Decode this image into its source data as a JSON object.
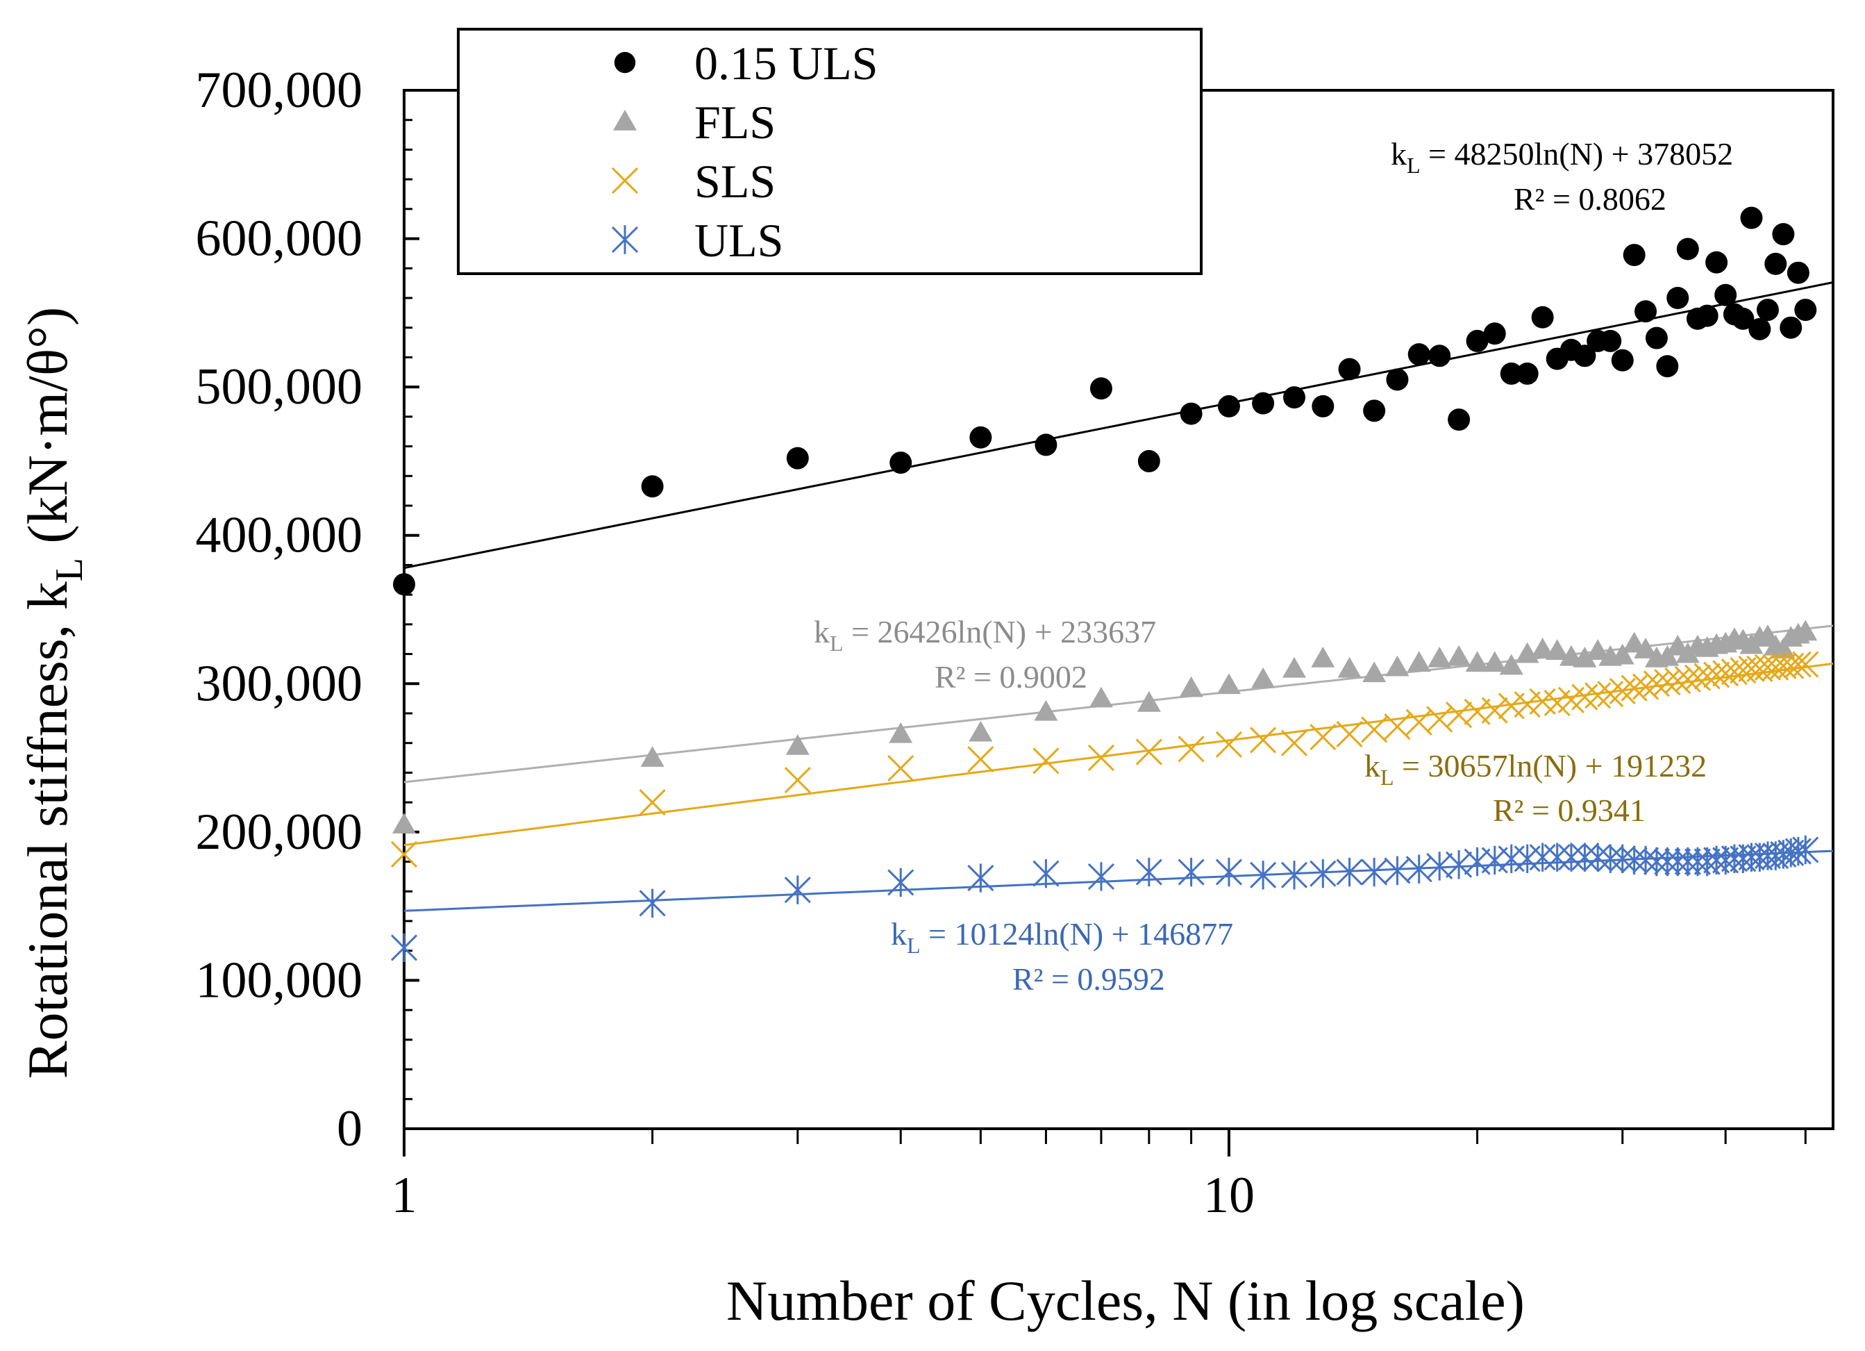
{
  "chart_data": {
    "type": "scatter",
    "title": "",
    "xlabel": "Number of Cycles, N (in log scale)",
    "ylabel": "Rotational stiffness, k",
    "ylabel_sub": "L",
    "ylabel_unit": "(kN·m/θ°)",
    "xscale": "log",
    "xlim": [
      1,
      54
    ],
    "ylim": [
      0,
      700000
    ],
    "x_ticks": [
      1,
      10
    ],
    "x_tick_labels": [
      "1",
      "10"
    ],
    "y_ticks": [
      0,
      100000,
      200000,
      300000,
      400000,
      500000,
      600000,
      700000
    ],
    "y_tick_labels": [
      "0",
      "100,000",
      "200,000",
      "300,000",
      "400,000",
      "500,000",
      "600,000",
      "700,000"
    ],
    "legend_position": "top-left",
    "series": [
      {
        "name": "0.15 ULS",
        "marker": "circle",
        "color": "#000000",
        "x": [
          1,
          2,
          3,
          4,
          5,
          6,
          7,
          8,
          9,
          10,
          11,
          12,
          13,
          14,
          15,
          16,
          17,
          18,
          19,
          20,
          21,
          22,
          23,
          24,
          25,
          26,
          27,
          28,
          29,
          30,
          31,
          32,
          33,
          34,
          35,
          36,
          37,
          38,
          39,
          40,
          41,
          42,
          43,
          44,
          45,
          46,
          47,
          48,
          49,
          50
        ],
        "values": [
          367000,
          433000,
          452000,
          449000,
          466000,
          461000,
          499000,
          450000,
          482000,
          487000,
          489000,
          493000,
          487000,
          512000,
          484000,
          505000,
          522000,
          521000,
          478000,
          531000,
          536000,
          509000,
          509000,
          547000,
          519000,
          525000,
          521000,
          531000,
          531000,
          518000,
          589000,
          551000,
          533000,
          514000,
          560000,
          593000,
          546000,
          548000,
          584000,
          562000,
          549000,
          546000,
          614000,
          539000,
          552000,
          583000,
          603000,
          540000,
          577000,
          552000
        ],
        "trend": {
          "a": 48250,
          "b": 378052
        },
        "equation": "k",
        "equation_sub": "L",
        "equation_rest": " = 48250ln(N) + 378052",
        "r2": "R² = 0.8062",
        "label_color": "#000000"
      },
      {
        "name": "FLS",
        "marker": "triangle",
        "color": "#a6a6a6",
        "x": [
          1,
          2,
          3,
          4,
          5,
          6,
          7,
          8,
          9,
          10,
          11,
          12,
          13,
          14,
          15,
          16,
          17,
          18,
          19,
          20,
          21,
          22,
          23,
          24,
          25,
          26,
          27,
          28,
          29,
          30,
          31,
          32,
          33,
          34,
          35,
          36,
          37,
          38,
          39,
          40,
          41,
          42,
          43,
          44,
          45,
          46,
          47,
          48,
          49,
          50
        ],
        "values": [
          205000,
          250000,
          258000,
          266000,
          267000,
          281000,
          290000,
          287000,
          297000,
          299000,
          303000,
          310000,
          317000,
          310000,
          307000,
          311000,
          314000,
          317000,
          318000,
          314000,
          314000,
          312000,
          320000,
          323000,
          322000,
          318000,
          317000,
          322000,
          318000,
          319000,
          327000,
          323000,
          317000,
          318000,
          325000,
          320000,
          325000,
          324000,
          326000,
          327000,
          330000,
          329000,
          326000,
          331000,
          332000,
          325000,
          323000,
          331000,
          333000,
          335000
        ],
        "trend": {
          "a": 26426,
          "b": 233637
        },
        "equation": "k",
        "equation_sub": "L",
        "equation_rest": " = 26426ln(N) + 233637",
        "r2": "R² = 0.9002",
        "label_color": "#8c8c8c"
      },
      {
        "name": "SLS",
        "marker": "x",
        "color": "#e6a817",
        "x": [
          1,
          2,
          3,
          4,
          5,
          6,
          7,
          8,
          9,
          10,
          11,
          12,
          13,
          14,
          15,
          16,
          17,
          18,
          19,
          20,
          21,
          22,
          23,
          24,
          25,
          26,
          27,
          28,
          29,
          30,
          31,
          32,
          33,
          34,
          35,
          36,
          37,
          38,
          39,
          40,
          41,
          42,
          43,
          44,
          45,
          46,
          47,
          48,
          49,
          50
        ],
        "values": [
          185000,
          220000,
          235000,
          243000,
          249000,
          248000,
          250000,
          254000,
          256000,
          259000,
          262000,
          260000,
          264000,
          266000,
          269000,
          271000,
          274000,
          276000,
          279000,
          281000,
          282000,
          285000,
          286000,
          288000,
          287000,
          289000,
          291000,
          292000,
          293000,
          295000,
          297000,
          298000,
          300000,
          301000,
          302000,
          303000,
          304000,
          305000,
          306000,
          307000,
          308000,
          309000,
          310000,
          310000,
          311000,
          311000,
          312000,
          312000,
          313000,
          313000
        ],
        "trend": {
          "a": 30657,
          "b": 191232
        },
        "equation": "k",
        "equation_sub": "L",
        "equation_rest": " = 30657ln(N) + 191232",
        "r2": "R² = 0.9341",
        "label_color": "#8b6d0c"
      },
      {
        "name": "ULS",
        "marker": "asterisk",
        "color": "#4472c4",
        "x": [
          1,
          2,
          3,
          4,
          5,
          6,
          7,
          8,
          9,
          10,
          11,
          12,
          13,
          14,
          15,
          16,
          17,
          18,
          19,
          20,
          21,
          22,
          23,
          24,
          25,
          26,
          27,
          28,
          29,
          30,
          31,
          32,
          33,
          34,
          35,
          36,
          37,
          38,
          39,
          40,
          41,
          42,
          43,
          44,
          45,
          46,
          47,
          48,
          49,
          50
        ],
        "values": [
          122000,
          152000,
          161000,
          166000,
          169000,
          172000,
          170000,
          173000,
          173000,
          173000,
          171000,
          171000,
          172000,
          173000,
          173000,
          174000,
          175000,
          177000,
          178000,
          180000,
          181000,
          182000,
          182000,
          183000,
          183000,
          183000,
          183000,
          183000,
          182000,
          182000,
          181000,
          181000,
          180000,
          180000,
          180000,
          180000,
          180000,
          180000,
          181000,
          181000,
          182000,
          182000,
          183000,
          183000,
          184000,
          184000,
          185000,
          186000,
          187000,
          188000
        ],
        "trend": {
          "a": 10124,
          "b": 146877
        },
        "equation": "k",
        "equation_sub": "L",
        "equation_rest": " = 10124ln(N) + 146877",
        "r2": "R² = 0.9592",
        "label_color": "#3a68b3"
      }
    ]
  }
}
